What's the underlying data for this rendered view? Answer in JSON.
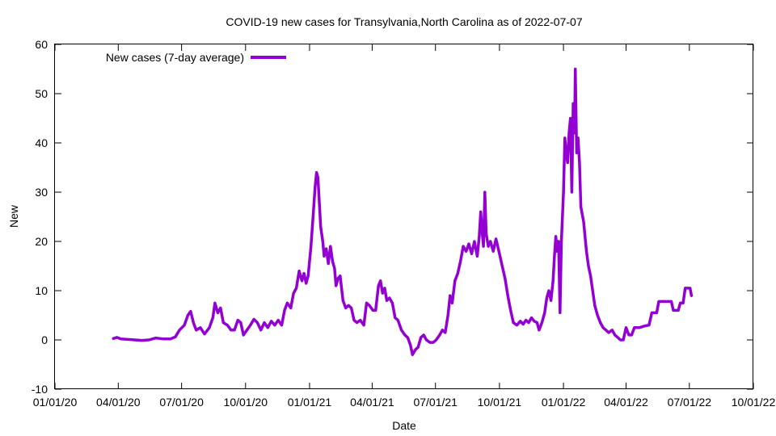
{
  "chart_data": {
    "type": "line",
    "title": "COVID-19 new cases for Transylvania,North Carolina as of 2022-07-07",
    "xlabel": "Date",
    "ylabel": "New",
    "xlim": [
      "2020-01-01",
      "2022-10-01"
    ],
    "ylim": [
      -10,
      60
    ],
    "x_ticks": [
      {
        "date": "2020-01-01",
        "label": "01/01/20"
      },
      {
        "date": "2020-04-01",
        "label": "04/01/20"
      },
      {
        "date": "2020-07-01",
        "label": "07/01/20"
      },
      {
        "date": "2020-10-01",
        "label": "10/01/20"
      },
      {
        "date": "2021-01-01",
        "label": "01/01/21"
      },
      {
        "date": "2021-04-01",
        "label": "04/01/21"
      },
      {
        "date": "2021-07-01",
        "label": "07/01/21"
      },
      {
        "date": "2021-10-01",
        "label": "10/01/21"
      },
      {
        "date": "2022-01-01",
        "label": "01/01/22"
      },
      {
        "date": "2022-04-01",
        "label": "04/01/22"
      },
      {
        "date": "2022-07-01",
        "label": "07/01/22"
      },
      {
        "date": "2022-10-01",
        "label": "10/01/22"
      }
    ],
    "y_ticks": [
      -10,
      0,
      10,
      20,
      30,
      40,
      50,
      60
    ],
    "grid": false,
    "legend_position": "top-left",
    "series": [
      {
        "name": "New cases (7-day average)",
        "color": "#9400d3",
        "points": [
          [
            "2020-03-25",
            0.3
          ],
          [
            "2020-03-30",
            0.5
          ],
          [
            "2020-04-05",
            0.2
          ],
          [
            "2020-04-15",
            0.1
          ],
          [
            "2020-04-25",
            0.0
          ],
          [
            "2020-05-05",
            -0.1
          ],
          [
            "2020-05-15",
            0.0
          ],
          [
            "2020-05-25",
            0.4
          ],
          [
            "2020-06-05",
            0.2
          ],
          [
            "2020-06-15",
            0.2
          ],
          [
            "2020-06-22",
            0.6
          ],
          [
            "2020-06-28",
            2.0
          ],
          [
            "2020-07-05",
            3.0
          ],
          [
            "2020-07-10",
            5.0
          ],
          [
            "2020-07-14",
            5.8
          ],
          [
            "2020-07-18",
            3.5
          ],
          [
            "2020-07-22",
            2.0
          ],
          [
            "2020-07-28",
            2.5
          ],
          [
            "2020-08-03",
            1.2
          ],
          [
            "2020-08-10",
            2.5
          ],
          [
            "2020-08-15",
            4.5
          ],
          [
            "2020-08-18",
            7.5
          ],
          [
            "2020-08-22",
            5.5
          ],
          [
            "2020-08-26",
            6.5
          ],
          [
            "2020-08-30",
            3.5
          ],
          [
            "2020-09-05",
            3.0
          ],
          [
            "2020-09-10",
            2.0
          ],
          [
            "2020-09-15",
            2.0
          ],
          [
            "2020-09-20",
            4.0
          ],
          [
            "2020-09-24",
            3.5
          ],
          [
            "2020-09-28",
            1.0
          ],
          [
            "2020-10-03",
            2.0
          ],
          [
            "2020-10-08",
            3.0
          ],
          [
            "2020-10-13",
            4.2
          ],
          [
            "2020-10-18",
            3.5
          ],
          [
            "2020-10-23",
            2.0
          ],
          [
            "2020-10-28",
            3.5
          ],
          [
            "2020-11-02",
            2.5
          ],
          [
            "2020-11-07",
            3.8
          ],
          [
            "2020-11-12",
            3.0
          ],
          [
            "2020-11-17",
            4.0
          ],
          [
            "2020-11-22",
            3.0
          ],
          [
            "2020-11-26",
            6.0
          ],
          [
            "2020-11-30",
            7.5
          ],
          [
            "2020-12-05",
            6.5
          ],
          [
            "2020-12-09",
            9.5
          ],
          [
            "2020-12-13",
            10.5
          ],
          [
            "2020-12-17",
            14.0
          ],
          [
            "2020-12-21",
            12.0
          ],
          [
            "2020-12-24",
            13.5
          ],
          [
            "2020-12-27",
            11.5
          ],
          [
            "2020-12-30",
            13.0
          ],
          [
            "2021-01-03",
            19.0
          ],
          [
            "2021-01-06",
            25.0
          ],
          [
            "2021-01-09",
            31.0
          ],
          [
            "2021-01-11",
            34.0
          ],
          [
            "2021-01-13",
            33.0
          ],
          [
            "2021-01-15",
            28.0
          ],
          [
            "2021-01-17",
            23.0
          ],
          [
            "2021-01-20",
            20.0
          ],
          [
            "2021-01-22",
            17.0
          ],
          [
            "2021-01-25",
            18.5
          ],
          [
            "2021-01-28",
            15.5
          ],
          [
            "2021-01-31",
            19.0
          ],
          [
            "2021-02-03",
            16.0
          ],
          [
            "2021-02-06",
            14.5
          ],
          [
            "2021-02-08",
            11.0
          ],
          [
            "2021-02-11",
            12.5
          ],
          [
            "2021-02-14",
            13.0
          ],
          [
            "2021-02-18",
            8.0
          ],
          [
            "2021-02-22",
            6.5
          ],
          [
            "2021-02-26",
            7.0
          ],
          [
            "2021-03-02",
            6.5
          ],
          [
            "2021-03-06",
            4.0
          ],
          [
            "2021-03-10",
            3.5
          ],
          [
            "2021-03-15",
            4.0
          ],
          [
            "2021-03-20",
            3.0
          ],
          [
            "2021-03-24",
            7.5
          ],
          [
            "2021-03-28",
            7.0
          ],
          [
            "2021-04-02",
            6.0
          ],
          [
            "2021-04-06",
            6.0
          ],
          [
            "2021-04-10",
            11.0
          ],
          [
            "2021-04-13",
            12.0
          ],
          [
            "2021-04-16",
            9.5
          ],
          [
            "2021-04-19",
            10.5
          ],
          [
            "2021-04-22",
            8.0
          ],
          [
            "2021-04-26",
            8.5
          ],
          [
            "2021-04-30",
            7.5
          ],
          [
            "2021-05-04",
            4.5
          ],
          [
            "2021-05-08",
            4.0
          ],
          [
            "2021-05-13",
            2.0
          ],
          [
            "2021-05-18",
            1.0
          ],
          [
            "2021-05-22",
            0.5
          ],
          [
            "2021-05-26",
            -1.0
          ],
          [
            "2021-05-29",
            -3.0
          ],
          [
            "2021-06-02",
            -2.0
          ],
          [
            "2021-06-06",
            -1.5
          ],
          [
            "2021-06-10",
            0.5
          ],
          [
            "2021-06-14",
            1.0
          ],
          [
            "2021-06-18",
            0.0
          ],
          [
            "2021-06-23",
            -0.5
          ],
          [
            "2021-06-28",
            -0.5
          ],
          [
            "2021-07-02",
            0.0
          ],
          [
            "2021-07-07",
            1.0
          ],
          [
            "2021-07-11",
            2.0
          ],
          [
            "2021-07-15",
            1.5
          ],
          [
            "2021-07-19",
            5.0
          ],
          [
            "2021-07-22",
            9.0
          ],
          [
            "2021-07-25",
            7.5
          ],
          [
            "2021-07-29",
            12.0
          ],
          [
            "2021-08-02",
            13.5
          ],
          [
            "2021-08-06",
            16.0
          ],
          [
            "2021-08-10",
            19.0
          ],
          [
            "2021-08-14",
            18.0
          ],
          [
            "2021-08-18",
            19.5
          ],
          [
            "2021-08-22",
            17.5
          ],
          [
            "2021-08-26",
            20.0
          ],
          [
            "2021-08-30",
            17.0
          ],
          [
            "2021-09-02",
            21.0
          ],
          [
            "2021-09-04",
            26.0
          ],
          [
            "2021-09-06",
            22.0
          ],
          [
            "2021-09-08",
            19.0
          ],
          [
            "2021-09-10",
            30.0
          ],
          [
            "2021-09-12",
            21.5
          ],
          [
            "2021-09-15",
            19.0
          ],
          [
            "2021-09-18",
            20.0
          ],
          [
            "2021-09-22",
            18.0
          ],
          [
            "2021-09-26",
            20.5
          ],
          [
            "2021-10-01",
            17.5
          ],
          [
            "2021-10-05",
            15.0
          ],
          [
            "2021-10-09",
            12.5
          ],
          [
            "2021-10-13",
            9.0
          ],
          [
            "2021-10-17",
            6.0
          ],
          [
            "2021-10-21",
            3.5
          ],
          [
            "2021-10-26",
            3.0
          ],
          [
            "2021-10-31",
            3.8
          ],
          [
            "2021-11-04",
            3.2
          ],
          [
            "2021-11-08",
            4.0
          ],
          [
            "2021-11-12",
            3.5
          ],
          [
            "2021-11-16",
            4.5
          ],
          [
            "2021-11-20",
            3.8
          ],
          [
            "2021-11-24",
            3.5
          ],
          [
            "2021-11-27",
            2.0
          ],
          [
            "2021-12-01",
            3.5
          ],
          [
            "2021-12-05",
            5.5
          ],
          [
            "2021-12-08",
            8.5
          ],
          [
            "2021-12-11",
            10.0
          ],
          [
            "2021-12-14",
            8.0
          ],
          [
            "2021-12-17",
            12.0
          ],
          [
            "2021-12-19",
            17.0
          ],
          [
            "2021-12-21",
            21.0
          ],
          [
            "2021-12-23",
            18.0
          ],
          [
            "2021-12-25",
            20.0
          ],
          [
            "2021-12-27",
            5.5
          ],
          [
            "2021-12-29",
            20.0
          ],
          [
            "2022-01-01",
            30.0
          ],
          [
            "2022-01-03",
            41.0
          ],
          [
            "2022-01-05",
            38.0
          ],
          [
            "2022-01-07",
            36.0
          ],
          [
            "2022-01-09",
            42.0
          ],
          [
            "2022-01-11",
            45.0
          ],
          [
            "2022-01-13",
            30.0
          ],
          [
            "2022-01-15",
            48.0
          ],
          [
            "2022-01-17",
            42.0
          ],
          [
            "2022-01-18",
            55.0
          ],
          [
            "2022-01-20",
            38.0
          ],
          [
            "2022-01-22",
            41.0
          ],
          [
            "2022-01-24",
            36.0
          ],
          [
            "2022-01-26",
            27.0
          ],
          [
            "2022-01-30",
            24.0
          ],
          [
            "2022-02-03",
            18.0
          ],
          [
            "2022-02-06",
            15.0
          ],
          [
            "2022-02-09",
            13.0
          ],
          [
            "2022-02-12",
            10.0
          ],
          [
            "2022-02-15",
            7.0
          ],
          [
            "2022-02-19",
            5.0
          ],
          [
            "2022-02-23",
            3.5
          ],
          [
            "2022-02-27",
            2.5
          ],
          [
            "2022-03-03",
            2.0
          ],
          [
            "2022-03-07",
            1.5
          ],
          [
            "2022-03-12",
            2.0
          ],
          [
            "2022-03-16",
            1.0
          ],
          [
            "2022-03-20",
            0.5
          ],
          [
            "2022-03-24",
            0.0
          ],
          [
            "2022-03-28",
            0.0
          ],
          [
            "2022-04-01",
            2.5
          ],
          [
            "2022-04-05",
            1.0
          ],
          [
            "2022-04-09",
            1.0
          ],
          [
            "2022-04-13",
            2.5
          ],
          [
            "2022-04-20",
            2.5
          ],
          [
            "2022-04-27",
            2.8
          ],
          [
            "2022-05-04",
            3.0
          ],
          [
            "2022-05-08",
            5.5
          ],
          [
            "2022-05-15",
            5.5
          ],
          [
            "2022-05-18",
            7.8
          ],
          [
            "2022-05-25",
            7.8
          ],
          [
            "2022-06-01",
            7.8
          ],
          [
            "2022-06-05",
            7.8
          ],
          [
            "2022-06-08",
            6.0
          ],
          [
            "2022-06-15",
            6.0
          ],
          [
            "2022-06-18",
            7.5
          ],
          [
            "2022-06-22",
            7.5
          ],
          [
            "2022-06-25",
            10.5
          ],
          [
            "2022-07-02",
            10.5
          ],
          [
            "2022-07-04",
            9.0
          ]
        ]
      }
    ]
  }
}
